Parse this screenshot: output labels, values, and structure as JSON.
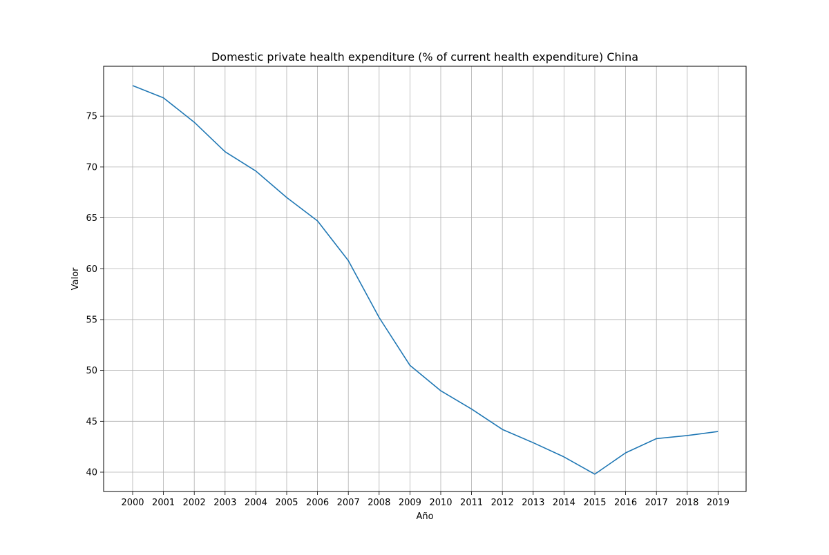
{
  "chart_data": {
    "type": "line",
    "title": "Domestic private health expenditure (% of current health expenditure) China",
    "xlabel": "Año",
    "ylabel": "Valor",
    "x": [
      "2000",
      "2001",
      "2002",
      "2003",
      "2004",
      "2005",
      "2006",
      "2007",
      "2008",
      "2009",
      "2010",
      "2011",
      "2012",
      "2013",
      "2014",
      "2015",
      "2016",
      "2017",
      "2018",
      "2019"
    ],
    "series": [
      {
        "values": [
          78.0,
          76.8,
          74.4,
          71.5,
          69.6,
          67.0,
          64.7,
          60.8,
          55.2,
          50.5,
          48.0,
          46.2,
          44.2,
          42.9,
          41.5,
          39.8,
          41.9,
          43.3,
          43.6,
          44.0
        ]
      }
    ],
    "yticks": [
      40,
      45,
      50,
      55,
      60,
      65,
      70,
      75
    ],
    "ylim": [
      38.1,
      79.9
    ],
    "grid": true,
    "line_color": "#1f77b4"
  }
}
